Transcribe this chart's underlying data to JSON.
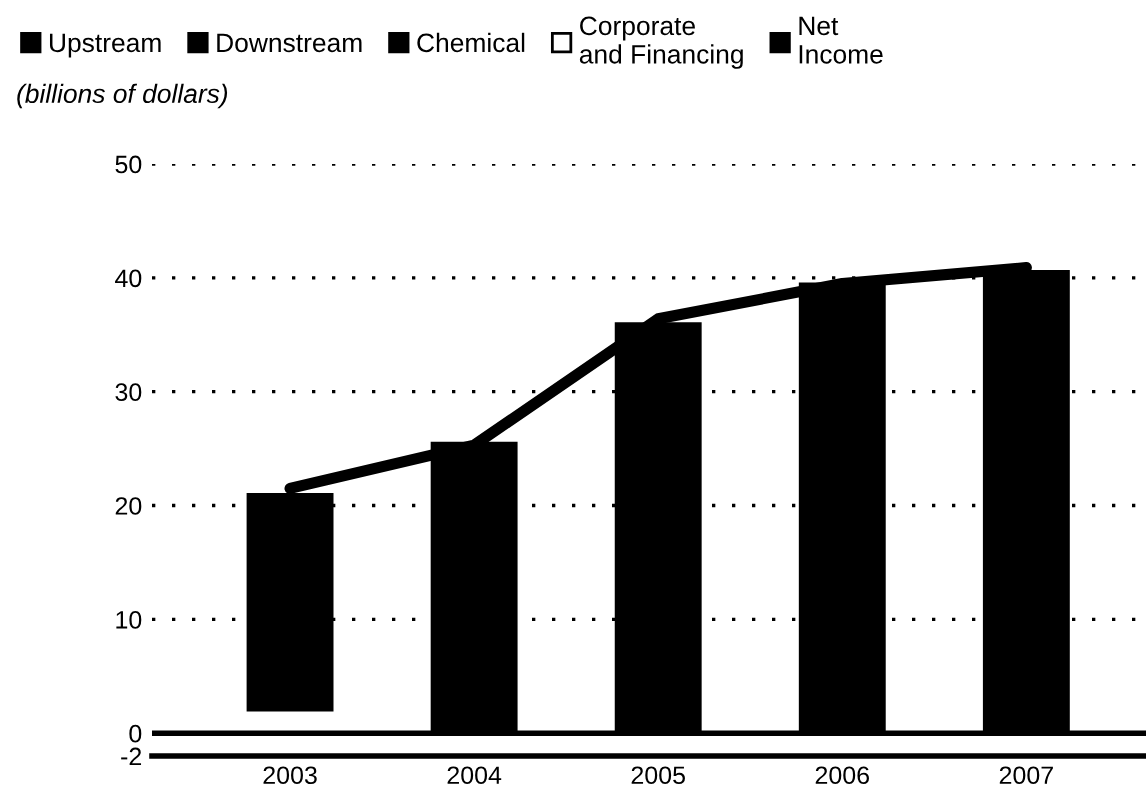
{
  "chart_data": {
    "type": "bar",
    "subtitle": "(billions of dollars)",
    "categories": [
      "2003",
      "2004",
      "2005",
      "2006",
      "2007"
    ],
    "series": [
      {
        "color": "#000000",
        "values": [
          19,
          25.5,
          36,
          39.5,
          40.6
        ],
        "base": [
          2,
          0,
          0,
          0,
          0
        ]
      },
      {
        "name": "Upstream",
        "color": "#000000",
        "values": [
          null,
          null,
          null,
          null,
          null
        ]
      },
      {
        "name": "Downstream",
        "color": "#000000",
        "values": [
          null,
          null,
          null,
          null,
          null
        ]
      },
      {
        "name": "Chemical",
        "color": "#000000",
        "values": [
          null,
          null,
          null,
          null,
          null
        ]
      },
      {
        "name": "Corporate\nand Financing",
        "color": "#ffffff",
        "values": [
          null,
          null,
          null,
          null,
          null
        ]
      },
      {
        "name": "Net\nIncome",
        "type": "line",
        "color": "#000000",
        "values": [
          21.5,
          25.3,
          36.4,
          39.5,
          40.9
        ]
      }
    ],
    "ylim": [
      -2,
      50
    ],
    "yticks": [
      -2,
      0,
      10,
      20,
      30,
      40,
      50
    ],
    "ref_lines": [
      {
        "axis": "y",
        "value": 0,
        "color": "#000000",
        "line_style": "solid"
      }
    ],
    "grid": "y",
    "legend": "top",
    "marker": "none",
    "line_style": "solid"
  }
}
